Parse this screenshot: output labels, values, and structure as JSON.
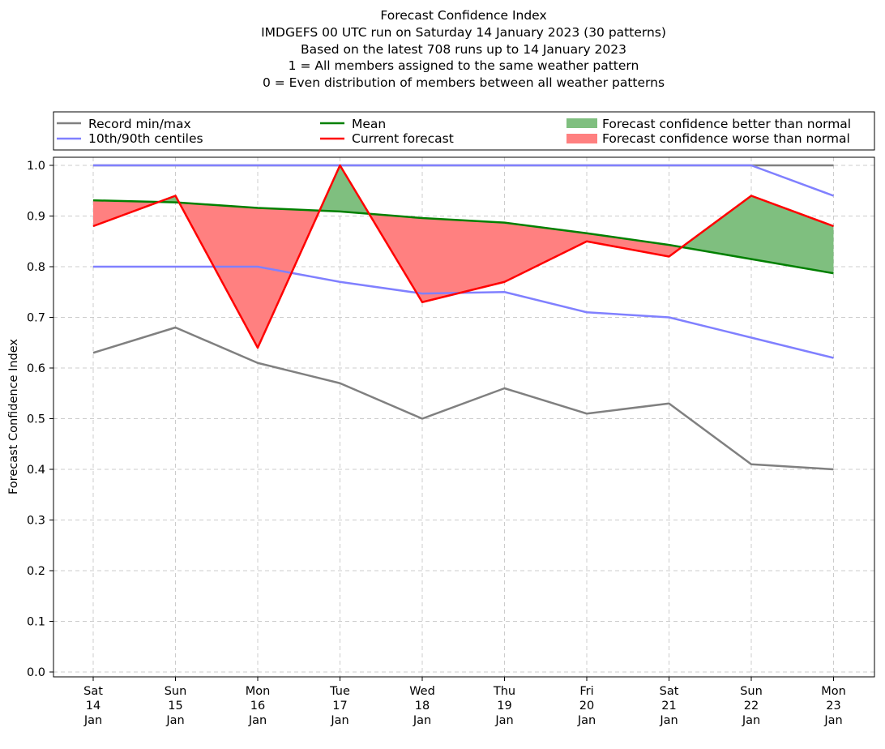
{
  "chart_data": {
    "type": "line",
    "title_lines": [
      "Forecast Confidence Index",
      "IMDGEFS 00 UTC run on Saturday 14 January 2023 (30 patterns)",
      "Based on the latest 708 runs up to 14 January 2023",
      "1 = All members assigned to the same weather pattern",
      "0 = Even distribution of members between all weather patterns"
    ],
    "ylabel": "Forecast Confidence Index",
    "ylim": [
      0,
      1.0
    ],
    "yticks": [
      "0.0",
      "0.1",
      "0.2",
      "0.3",
      "0.4",
      "0.5",
      "0.6",
      "0.7",
      "0.8",
      "0.9",
      "1.0"
    ],
    "grid": true,
    "legend_position": "top",
    "categories": [
      [
        "Sat",
        "14",
        "Jan"
      ],
      [
        "Sun",
        "15",
        "Jan"
      ],
      [
        "Mon",
        "16",
        "Jan"
      ],
      [
        "Tue",
        "17",
        "Jan"
      ],
      [
        "Wed",
        "18",
        "Jan"
      ],
      [
        "Thu",
        "19",
        "Jan"
      ],
      [
        "Fri",
        "20",
        "Jan"
      ],
      [
        "Sat",
        "21",
        "Jan"
      ],
      [
        "Sun",
        "22",
        "Jan"
      ],
      [
        "Mon",
        "23",
        "Jan"
      ]
    ],
    "legend": {
      "record": "Record min/max",
      "centiles": "10th/90th centiles",
      "mean": "Mean",
      "current": "Current forecast",
      "better": "Forecast confidence better than normal",
      "worse": "Forecast confidence worse than normal"
    },
    "series": {
      "record_min": [
        0.63,
        0.68,
        0.61,
        0.57,
        0.5,
        0.56,
        0.51,
        0.53,
        0.41,
        0.4
      ],
      "record_max": [
        1.0,
        1.0,
        1.0,
        1.0,
        1.0,
        1.0,
        1.0,
        1.0,
        1.0,
        1.0
      ],
      "centile_10": [
        0.8,
        0.8,
        0.8,
        0.77,
        0.747,
        0.75,
        0.71,
        0.7,
        0.66,
        0.62
      ],
      "centile_90": [
        1.0,
        1.0,
        1.0,
        1.0,
        1.0,
        1.0,
        1.0,
        1.0,
        1.0,
        0.94
      ],
      "mean": [
        0.931,
        0.927,
        0.916,
        0.909,
        0.896,
        0.887,
        0.866,
        0.843,
        0.815,
        0.787
      ],
      "current": [
        0.88,
        0.94,
        0.64,
        1.0,
        0.73,
        0.77,
        0.85,
        0.82,
        0.94,
        0.88
      ]
    },
    "colors": {
      "record": "#808080",
      "centiles": "#8080ff",
      "mean": "#008000",
      "current": "#ff0000",
      "better": "#7fbf7f",
      "worse": "#ff8080",
      "grid": "#cccccc"
    }
  }
}
